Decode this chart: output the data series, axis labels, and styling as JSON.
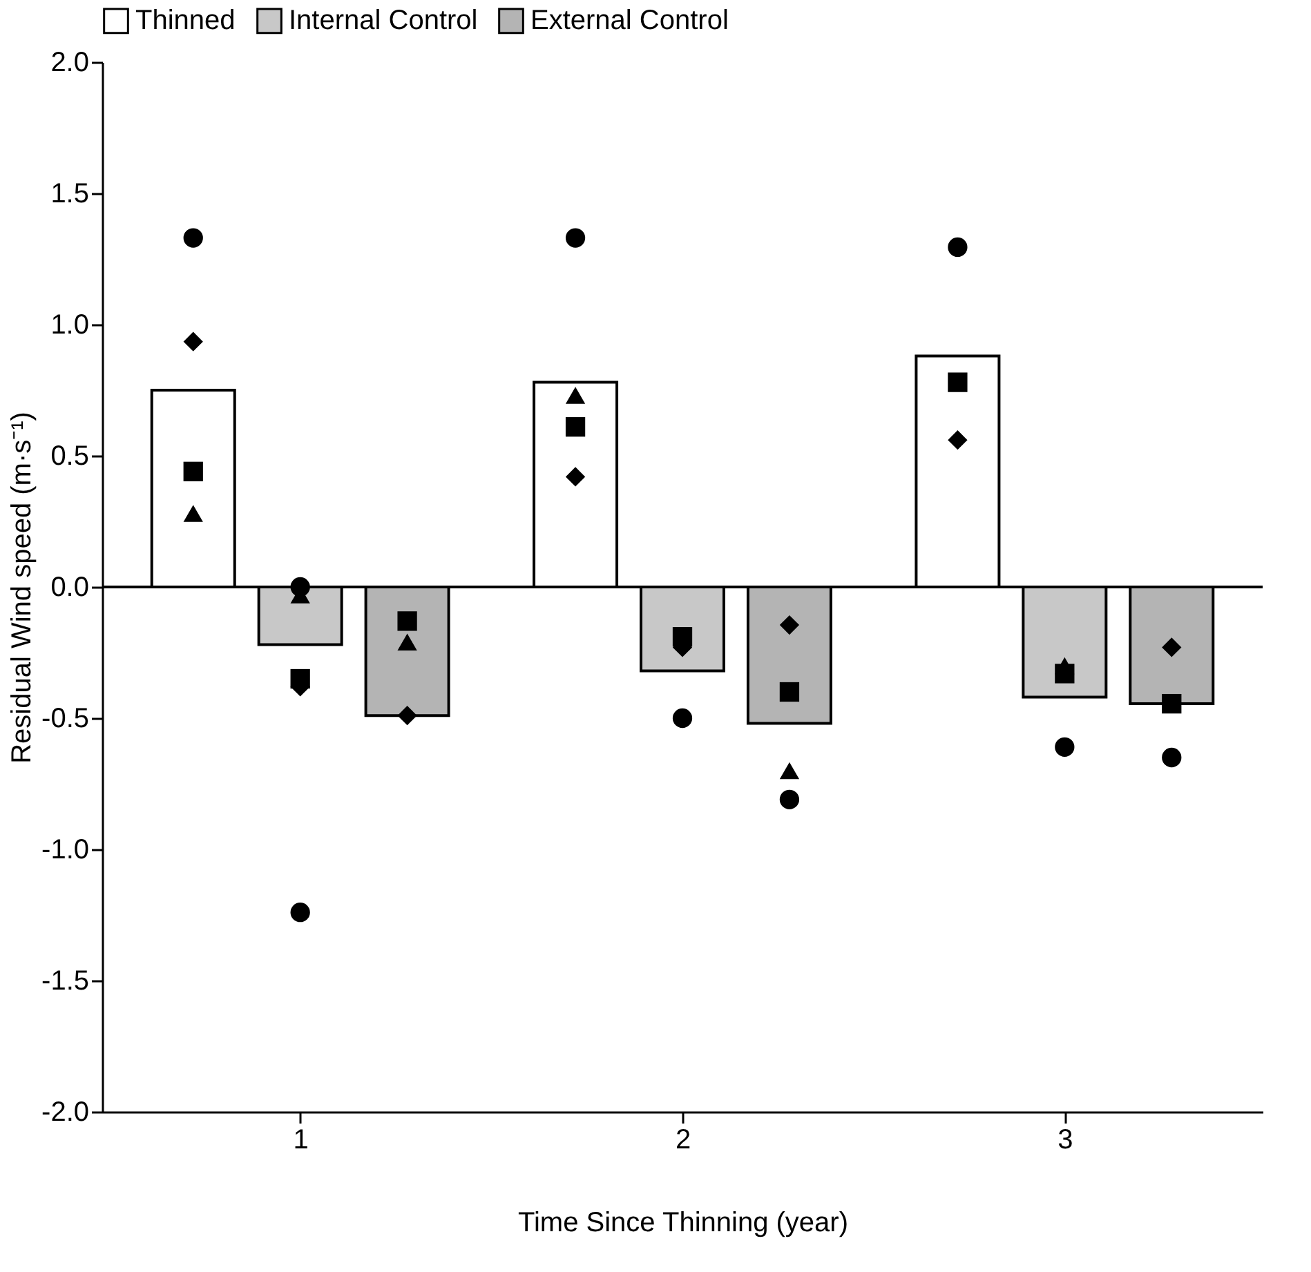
{
  "chart_data": {
    "type": "bar",
    "xlabel": "Time Since Thinning (year)",
    "ylabel": "Residual Wind speed (m·s⁻¹)",
    "xlim": [
      0.5,
      3.5
    ],
    "xticks": [
      {
        "value": 1,
        "label": "1"
      },
      {
        "value": 2,
        "label": "2"
      },
      {
        "value": 3,
        "label": "3"
      }
    ],
    "ylim": [
      -2.0,
      2.0
    ],
    "yticks": [
      {
        "value": -2,
        "label": "-2.0"
      },
      {
        "value": -1.5,
        "label": "-1.5"
      },
      {
        "value": -1,
        "label": "-1.0"
      },
      {
        "value": -0.5,
        "label": "-0.5"
      },
      {
        "value": 0,
        "label": "0.0"
      },
      {
        "value": 0.5,
        "label": "0.5"
      },
      {
        "value": 1,
        "label": "1.0"
      },
      {
        "value": 1.5,
        "label": "1.5"
      },
      {
        "value": 2,
        "label": "2.0"
      }
    ],
    "legend": "top",
    "grid": false,
    "ref_lines": [
      {
        "axis": "y",
        "value": 0,
        "color": "#000000"
      }
    ],
    "series": [
      {
        "name": "Thinned",
        "type": "bar",
        "color": "#ffffff",
        "x": [
          0.72,
          1.72,
          2.72
        ],
        "values": [
          0.75,
          0.78,
          0.88
        ]
      },
      {
        "name": "Internal Control",
        "type": "bar",
        "color": "#c8c8c8",
        "x": [
          1.0,
          2.0,
          3.0
        ],
        "values": [
          -0.22,
          -0.32,
          -0.42
        ]
      },
      {
        "name": "External Control",
        "type": "bar",
        "color": "#b4b4b4",
        "x": [
          1.28,
          2.28,
          3.28
        ],
        "values": [
          -0.49,
          -0.52,
          -0.445
        ]
      },
      {
        "type": "scatter",
        "marker": "circle",
        "color": "#000000",
        "x": [
          0.72,
          1.0,
          1.0,
          1.72,
          2.0,
          2.28,
          2.72,
          3.0,
          3.28
        ],
        "values": [
          1.33,
          0.0,
          -1.24,
          1.33,
          -0.5,
          -0.81,
          1.295,
          -0.61,
          -0.65
        ]
      },
      {
        "type": "scatter",
        "marker": "square",
        "color": "#000000",
        "x": [
          0.72,
          1.0,
          1.28,
          1.72,
          2.0,
          2.28,
          2.72,
          3.0,
          3.28
        ],
        "values": [
          0.44,
          -0.35,
          -0.13,
          0.61,
          -0.19,
          -0.4,
          0.78,
          -0.33,
          -0.445
        ]
      },
      {
        "type": "scatter",
        "marker": "triangle",
        "color": "#000000",
        "x": [
          0.72,
          1.0,
          1.28,
          1.72,
          2.28,
          3.0
        ],
        "values": [
          0.28,
          -0.03,
          -0.21,
          0.73,
          -0.7,
          -0.3
        ]
      },
      {
        "type": "scatter",
        "marker": "diamond",
        "color": "#000000",
        "x": [
          0.72,
          1.0,
          1.28,
          1.72,
          2.0,
          2.28,
          2.72,
          3.28
        ],
        "values": [
          0.935,
          -0.38,
          -0.49,
          0.42,
          -0.23,
          -0.145,
          0.56,
          -0.23
        ]
      }
    ]
  }
}
